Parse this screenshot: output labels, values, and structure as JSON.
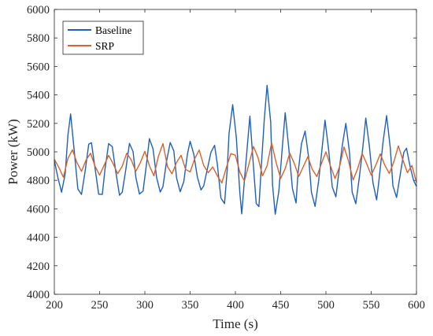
{
  "chart_data": {
    "type": "line",
    "title": "",
    "xlabel": "Time (s)",
    "ylabel": "Power (kW)",
    "xlim": [
      200,
      600
    ],
    "ylim": [
      4000,
      6000
    ],
    "xticks": [
      200,
      250,
      300,
      350,
      400,
      450,
      500,
      550,
      600
    ],
    "yticks": [
      4000,
      4200,
      4400,
      4600,
      4800,
      5000,
      5200,
      5400,
      5600,
      5800,
      6000
    ],
    "xtick_labels": [
      "200",
      "250",
      "300",
      "350",
      "400",
      "450",
      "500",
      "550",
      "600"
    ],
    "ytick_labels": [
      "4000",
      "4200",
      "4400",
      "4600",
      "4800",
      "5000",
      "5200",
      "5400",
      "5600",
      "5800",
      "6000"
    ],
    "grid": false,
    "legend_position": "top-left",
    "series": [
      {
        "name": "Baseline",
        "color": "#1f5fbf",
        "x": [
          200,
          204,
          208,
          212,
          215,
          218,
          222,
          226,
          230,
          234,
          238,
          241,
          245,
          249,
          253,
          256,
          260,
          264,
          268,
          272,
          275,
          279,
          283,
          287,
          290,
          294,
          298,
          302,
          305,
          309,
          313,
          317,
          320,
          324,
          328,
          332,
          335,
          339,
          343,
          347,
          350,
          354,
          358,
          362,
          365,
          369,
          373,
          377,
          380,
          384,
          388,
          391,
          393,
          397,
          401,
          405,
          407,
          410,
          414,
          416,
          419,
          423,
          426,
          429,
          432,
          435,
          439,
          441,
          444,
          448,
          452,
          455,
          459,
          463,
          467,
          469,
          473,
          477,
          481,
          484,
          488,
          492,
          496,
          499,
          503,
          507,
          511,
          514,
          518,
          522,
          526,
          529,
          533,
          537,
          541,
          544,
          548,
          552,
          556,
          559,
          563,
          567,
          571,
          574,
          578,
          582,
          586,
          589,
          593,
          597,
          600
        ],
        "y": [
          4940,
          4820,
          4720,
          4850,
          5120,
          5270,
          5010,
          4740,
          4700,
          4860,
          5050,
          5060,
          4880,
          4700,
          4700,
          4880,
          5060,
          5040,
          4860,
          4700,
          4720,
          4880,
          5060,
          5000,
          4820,
          4700,
          4720,
          4920,
          5090,
          5020,
          4820,
          4720,
          4760,
          4940,
          5070,
          5010,
          4820,
          4720,
          4790,
          4980,
          5070,
          4980,
          4820,
          4730,
          4760,
          4880,
          5000,
          5050,
          4920,
          4680,
          4640,
          4880,
          5130,
          5330,
          5100,
          4700,
          4560,
          4800,
          5100,
          5250,
          4980,
          4640,
          4620,
          4940,
          5240,
          5470,
          5210,
          4770,
          4560,
          4720,
          5040,
          5270,
          5020,
          4740,
          4640,
          4840,
          5060,
          5150,
          4960,
          4720,
          4620,
          4800,
          5040,
          5220,
          5010,
          4750,
          4680,
          4840,
          5040,
          5200,
          5000,
          4720,
          4640,
          4830,
          5050,
          5240,
          5040,
          4780,
          4660,
          4820,
          5060,
          5250,
          5030,
          4760,
          4680,
          4840,
          5000,
          5030,
          4900,
          4800,
          4760
        ]
      },
      {
        "name": "SRP",
        "color": "#d9622b",
        "x": [
          200,
          205,
          210,
          215,
          220,
          225,
          230,
          235,
          240,
          245,
          250,
          255,
          260,
          265,
          270,
          275,
          280,
          285,
          290,
          295,
          300,
          305,
          310,
          315,
          320,
          325,
          330,
          335,
          340,
          345,
          350,
          355,
          360,
          365,
          370,
          375,
          380,
          385,
          390,
          395,
          400,
          405,
          410,
          415,
          420,
          425,
          430,
          435,
          440,
          445,
          450,
          455,
          460,
          465,
          470,
          475,
          480,
          485,
          490,
          495,
          500,
          505,
          510,
          515,
          520,
          525,
          530,
          535,
          540,
          545,
          550,
          555,
          560,
          565,
          570,
          575,
          580,
          585,
          590,
          595,
          600
        ],
        "y": [
          4950,
          4890,
          4820,
          4950,
          5010,
          4920,
          4860,
          4940,
          4990,
          4900,
          4840,
          4910,
          4980,
          4920,
          4850,
          4900,
          4990,
          4940,
          4860,
          4920,
          5000,
          4900,
          4830,
          4970,
          5060,
          4900,
          4850,
          4930,
          4980,
          4880,
          4860,
          4950,
          5010,
          4900,
          4850,
          4890,
          4830,
          4780,
          4890,
          4990,
          4980,
          4860,
          4800,
          4920,
          5040,
          4960,
          4830,
          4900,
          5060,
          4920,
          4810,
          4880,
          4990,
          4920,
          4830,
          4900,
          4970,
          4880,
          4830,
          4920,
          5000,
          4900,
          4810,
          4890,
          5030,
          4930,
          4800,
          4880,
          4990,
          4920,
          4840,
          4910,
          4990,
          4910,
          4850,
          4930,
          5040,
          4940,
          4850,
          4900,
          4780
        ]
      }
    ]
  }
}
